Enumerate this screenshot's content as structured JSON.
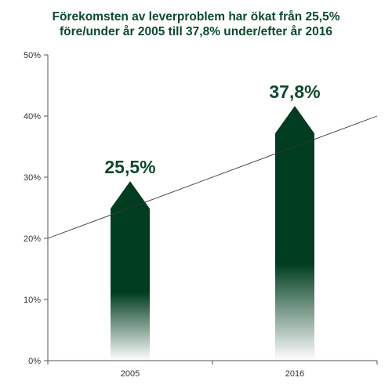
{
  "chart_data": {
    "type": "bar",
    "title_lines": [
      "Förekomsten av leverproblem har ökat från 25,5%",
      "före/under år 2005 till 37,8% under/efter år 2016"
    ],
    "categories": [
      "2005",
      "2016"
    ],
    "values": [
      25.5,
      37.8
    ],
    "data_labels": [
      "25,5%",
      "37,8%"
    ],
    "ylim": [
      0,
      50
    ],
    "y_ticks": [
      0,
      10,
      20,
      30,
      40,
      50
    ],
    "y_tick_labels": [
      "0%",
      "10%",
      "20%",
      "30%",
      "40%",
      "50%"
    ],
    "xlabel": "",
    "ylabel": "",
    "grid": false,
    "legend": "none",
    "bar_style": "upward arrows with gradient fade to white at the base",
    "trend_line": {
      "from": 20,
      "to": 40
    },
    "colors": {
      "bar": "#003d20",
      "title": "#0b4a2c",
      "label": "#0b4a2c",
      "axis": "#555555",
      "trend": "#333333"
    }
  }
}
